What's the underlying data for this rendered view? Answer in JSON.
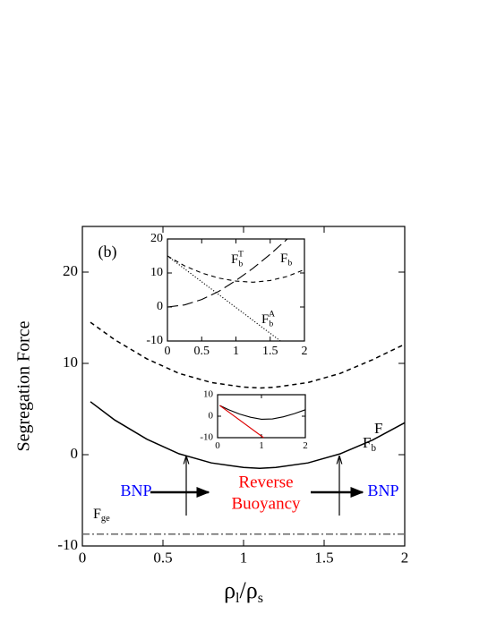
{
  "chart_data": [
    {
      "type": "line",
      "y_label": "Segregation Force",
      "x_label": [
        "ρ",
        "l",
        "/ρ",
        "s"
      ],
      "xlim": [
        0,
        2
      ],
      "ylim": [
        -10,
        25
      ],
      "xticks": [
        0,
        0.5,
        1,
        1.5,
        2
      ],
      "yticks": [
        -10,
        0,
        10,
        20
      ],
      "annotations": [
        {
          "text": "(b)",
          "color": "#000000"
        },
        {
          "text": "BNP",
          "color": "#0000ff"
        },
        {
          "text": "Reverse",
          "color": "#ff0000"
        },
        {
          "text": "Buoyancy",
          "color": "#ff0000"
        },
        {
          "text": "BNP",
          "color": "#0000ff"
        }
      ],
      "series": [
        {
          "name": "F",
          "sub": "b",
          "color": "#000000",
          "dash": "dashed",
          "x": [
            0.05,
            0.2,
            0.4,
            0.6,
            0.8,
            1.0,
            1.1,
            1.2,
            1.4,
            1.6,
            1.8,
            2.0
          ],
          "values": [
            14.5,
            12.6,
            10.5,
            8.9,
            7.9,
            7.4,
            7.3,
            7.4,
            7.9,
            8.9,
            10.4,
            12.1
          ]
        },
        {
          "name": "F",
          "color": "#000000",
          "dash": "solid",
          "x": [
            0.05,
            0.2,
            0.4,
            0.6,
            0.8,
            1.0,
            1.1,
            1.2,
            1.4,
            1.6,
            1.8,
            2.0
          ],
          "values": [
            5.8,
            3.8,
            1.7,
            0.1,
            -0.9,
            -1.4,
            -1.5,
            -1.4,
            -0.9,
            0.1,
            1.6,
            3.5
          ]
        },
        {
          "name": "F",
          "sub": "ge",
          "color": "#666666",
          "dash": "dashdot",
          "x": [
            0,
            2
          ],
          "values": [
            -8.7,
            -8.7
          ]
        }
      ]
    },
    {
      "type": "line",
      "xlim": [
        0,
        2
      ],
      "ylim": [
        -10,
        20
      ],
      "xticks": [
        0,
        0.5,
        1,
        1.5,
        2
      ],
      "yticks": [
        -10,
        0,
        10,
        20
      ],
      "series": [
        {
          "name": "F",
          "sub": "b",
          "sup": "T",
          "color": "#000000",
          "dash": "longdash",
          "x": [
            0,
            0.25,
            0.5,
            0.75,
            1,
            1.25,
            1.5,
            1.75
          ],
          "values": [
            0,
            0.6,
            2.2,
            4.6,
            7.8,
            11.4,
            15.5,
            20
          ]
        },
        {
          "name": "F",
          "sub": "b",
          "color": "#000000",
          "dash": "dashed",
          "x": [
            0,
            0.25,
            0.5,
            0.75,
            1,
            1.25,
            1.5,
            1.75,
            2
          ],
          "values": [
            15,
            12.1,
            10,
            8.5,
            7.6,
            7.3,
            7.8,
            9,
            11
          ]
        },
        {
          "name": "F",
          "sub": "b",
          "sup": "A",
          "color": "#000000",
          "dash": "dotted",
          "x": [
            0,
            1.65
          ],
          "values": [
            15,
            -10
          ]
        }
      ]
    },
    {
      "type": "line",
      "xlim": [
        0,
        2
      ],
      "ylim": [
        -10,
        10
      ],
      "xticks": [
        0,
        1,
        2
      ],
      "yticks": [
        -10,
        0,
        10
      ],
      "series": [
        {
          "color": "#000000",
          "dash": "solid",
          "x": [
            0.05,
            0.25,
            0.5,
            0.75,
            1,
            1.25,
            1.5,
            1.75,
            2
          ],
          "values": [
            5,
            3,
            1,
            -0.5,
            -1.4,
            -1.3,
            -0.3,
            1.2,
            3
          ]
        },
        {
          "color": "#dd0000",
          "dash": "solid",
          "x": [
            0.05,
            1.05
          ],
          "values": [
            5,
            -10
          ]
        }
      ]
    }
  ]
}
